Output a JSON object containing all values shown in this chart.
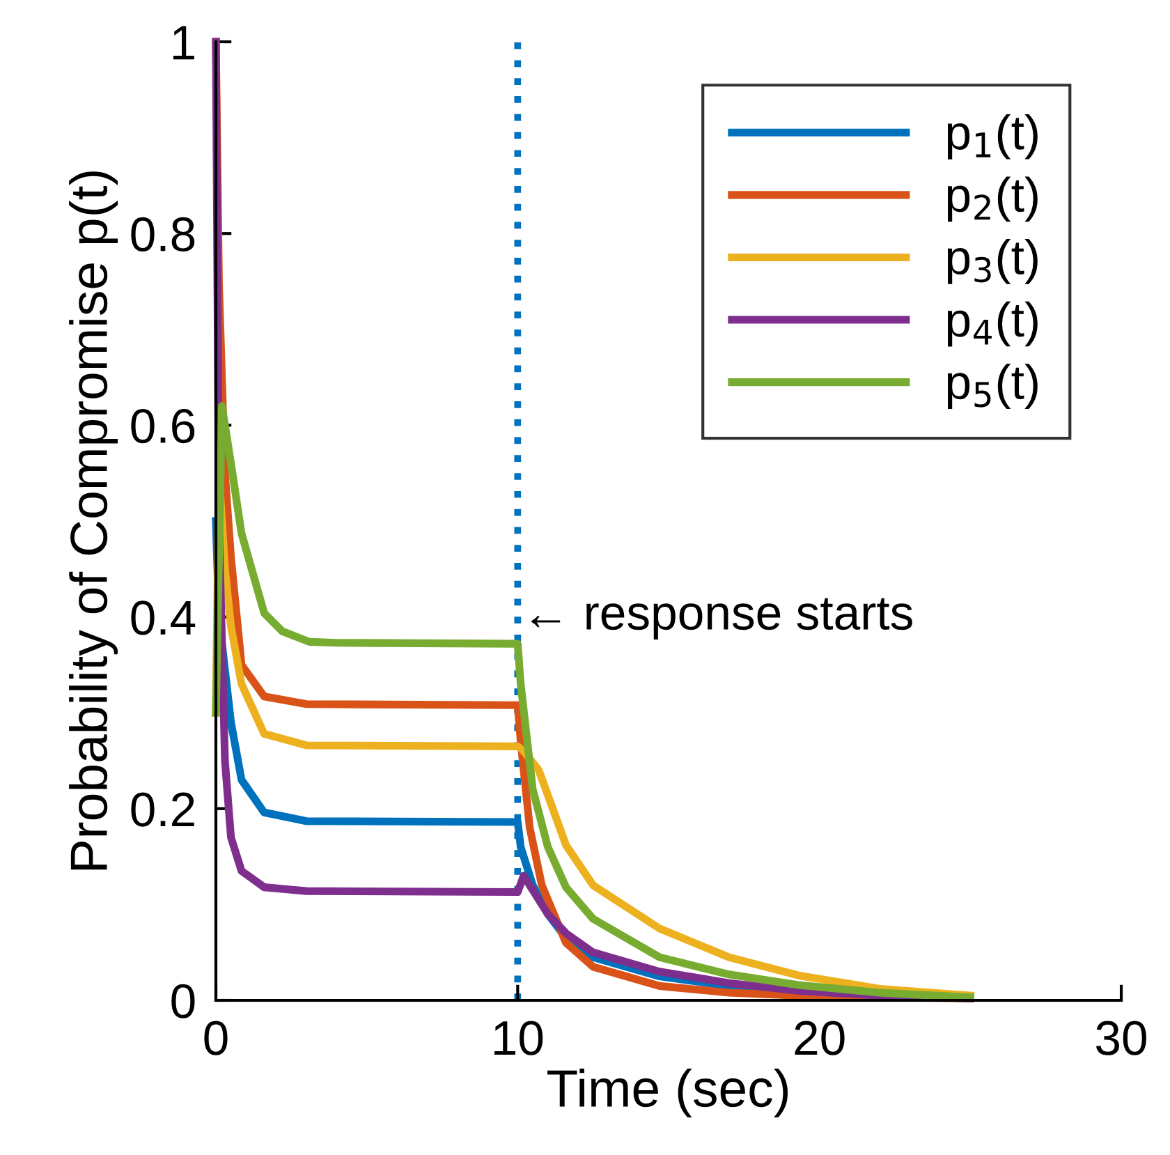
{
  "chart_data": {
    "type": "line",
    "xlabel": "Time (sec)",
    "ylabel": "Probability of Compromise p(t)",
    "xlim": [
      0,
      30
    ],
    "xticks": [
      0,
      10,
      20,
      30
    ],
    "ylim": [
      0,
      1
    ],
    "yticks": [
      0,
      0.2,
      0.4,
      0.6,
      0.8,
      1
    ],
    "grid": false,
    "legend": "top right",
    "line_style": "solid",
    "series": [
      {
        "name": "p$_{1}$(t)",
        "color": "#0072bd",
        "x": [
          0,
          0.1,
          0.5,
          0.85,
          1.6,
          3,
          10,
          10.1,
          10.5,
          11,
          11.6,
          12.5,
          14.7,
          17,
          19.3
        ],
        "values": [
          0.5,
          0.4,
          0.29,
          0.23,
          0.196,
          0.187,
          0.186,
          0.16,
          0.12,
          0.09,
          0.065,
          0.045,
          0.025,
          0.015,
          0.009
        ]
      },
      {
        "name": "p$_{2}$(t)",
        "color": "#d95319",
        "x": [
          0,
          0.1,
          0.3,
          0.5,
          0.85,
          1.6,
          3,
          10,
          10.1,
          10.4,
          10.8,
          11.6,
          12.5,
          14.7,
          17,
          19.3,
          22,
          25
        ],
        "values": [
          1,
          0.75,
          0.55,
          0.462,
          0.35,
          0.317,
          0.309,
          0.308,
          0.27,
          0.18,
          0.12,
          0.06,
          0.035,
          0.015,
          0.008,
          0.005,
          0.003,
          0.002
        ]
      },
      {
        "name": "p$_{3}$(t)",
        "color": "#edb120",
        "x": [
          0,
          0.1,
          0.3,
          0.5,
          0.85,
          1.6,
          3,
          10,
          10.2,
          10.7,
          11.6,
          12.5,
          14.7,
          17,
          19.3,
          22,
          25
        ],
        "values": [
          0.3,
          0.55,
          0.45,
          0.39,
          0.33,
          0.278,
          0.266,
          0.265,
          0.26,
          0.24,
          0.162,
          0.12,
          0.075,
          0.045,
          0.026,
          0.012,
          0.005
        ]
      },
      {
        "name": "p$_{4}$(t)",
        "color": "#7e2f8e",
        "x": [
          0,
          0.1,
          0.3,
          0.5,
          0.85,
          1.6,
          3,
          10,
          10.2,
          10.5,
          11,
          11.6,
          12.5,
          14.7,
          17,
          19.3,
          22,
          25
        ],
        "values": [
          1,
          0.5,
          0.25,
          0.17,
          0.135,
          0.118,
          0.114,
          0.113,
          0.13,
          0.115,
          0.09,
          0.07,
          0.05,
          0.03,
          0.018,
          0.01,
          0.005,
          0.002
        ]
      },
      {
        "name": "p$_{5}$(t)",
        "color": "#77ac30",
        "x": [
          0,
          0.2,
          0.5,
          0.85,
          1.6,
          2.2,
          3.1,
          4,
          10,
          10.1,
          10.5,
          11,
          11.6,
          12.5,
          14.7,
          17,
          19.3,
          22,
          25
        ],
        "values": [
          0.3,
          0.62,
          0.56,
          0.487,
          0.404,
          0.385,
          0.374,
          0.373,
          0.372,
          0.33,
          0.22,
          0.16,
          0.118,
          0.085,
          0.045,
          0.027,
          0.016,
          0.008,
          0.003
        ]
      }
    ],
    "ref_lines": [
      {
        "axis": "x",
        "value": 10,
        "color": "#0072bd",
        "line_style": "dotted"
      }
    ],
    "annotations": [
      {
        "text": "← response starts",
        "x": 10,
        "y": 0.4
      }
    ]
  }
}
